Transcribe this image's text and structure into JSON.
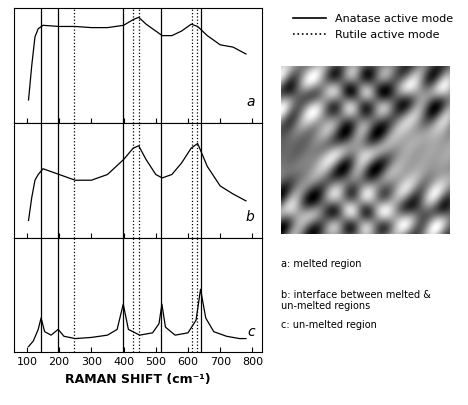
{
  "chart_data": {
    "type": "line",
    "x_label": "RAMAN SHIFT (cm⁻¹)",
    "xlim": [
      60,
      830
    ],
    "xticks": [
      100,
      200,
      300,
      400,
      500,
      600,
      700,
      800
    ],
    "ylim": [
      0,
      1
    ],
    "tick_labels": "x",
    "legend": "upper right",
    "series": [
      {
        "name": "a",
        "color": "#000000",
        "x": [
          105,
          115,
          125,
          135,
          150,
          200,
          250,
          300,
          350,
          400,
          430,
          447,
          470,
          500,
          520,
          550,
          580,
          610,
          630,
          660,
          700,
          740,
          780
        ],
        "values": [
          0.2,
          0.5,
          0.75,
          0.82,
          0.85,
          0.84,
          0.84,
          0.83,
          0.83,
          0.85,
          0.9,
          0.92,
          0.86,
          0.8,
          0.76,
          0.76,
          0.8,
          0.86,
          0.84,
          0.76,
          0.68,
          0.66,
          0.6
        ]
      },
      {
        "name": "b",
        "color": "#000000",
        "x": [
          105,
          115,
          125,
          135,
          150,
          200,
          250,
          300,
          350,
          400,
          430,
          447,
          470,
          500,
          520,
          550,
          580,
          610,
          630,
          660,
          700,
          740,
          780
        ],
        "values": [
          0.15,
          0.35,
          0.5,
          0.55,
          0.6,
          0.55,
          0.5,
          0.5,
          0.55,
          0.68,
          0.78,
          0.8,
          0.68,
          0.55,
          0.52,
          0.55,
          0.65,
          0.78,
          0.82,
          0.62,
          0.45,
          0.38,
          0.32
        ]
      },
      {
        "name": "c",
        "color": "#000000",
        "x": [
          105,
          120,
          135,
          144,
          155,
          175,
          197,
          215,
          250,
          300,
          350,
          380,
          399,
          415,
          450,
          490,
          510,
          519,
          530,
          560,
          600,
          625,
          639,
          655,
          680,
          720,
          760,
          780
        ],
        "values": [
          0.05,
          0.1,
          0.2,
          0.3,
          0.18,
          0.15,
          0.2,
          0.14,
          0.12,
          0.13,
          0.15,
          0.2,
          0.42,
          0.2,
          0.15,
          0.17,
          0.25,
          0.42,
          0.22,
          0.15,
          0.17,
          0.28,
          0.55,
          0.3,
          0.18,
          0.14,
          0.12,
          0.12
        ]
      }
    ],
    "reference_lines": [
      {
        "name": "Anatase active mode",
        "line_style": "solid",
        "color": "#000000",
        "x": [
          144,
          197,
          399,
          515,
          639
        ]
      },
      {
        "name": "Rutile active mode",
        "line_style": "dotted",
        "color": "#000000",
        "x": [
          245,
          428,
          447,
          612,
          627
        ]
      }
    ],
    "annotations": [
      "a: melted region",
      "b: interface between melted & un-melted regions",
      "c: un-melted region"
    ]
  }
}
